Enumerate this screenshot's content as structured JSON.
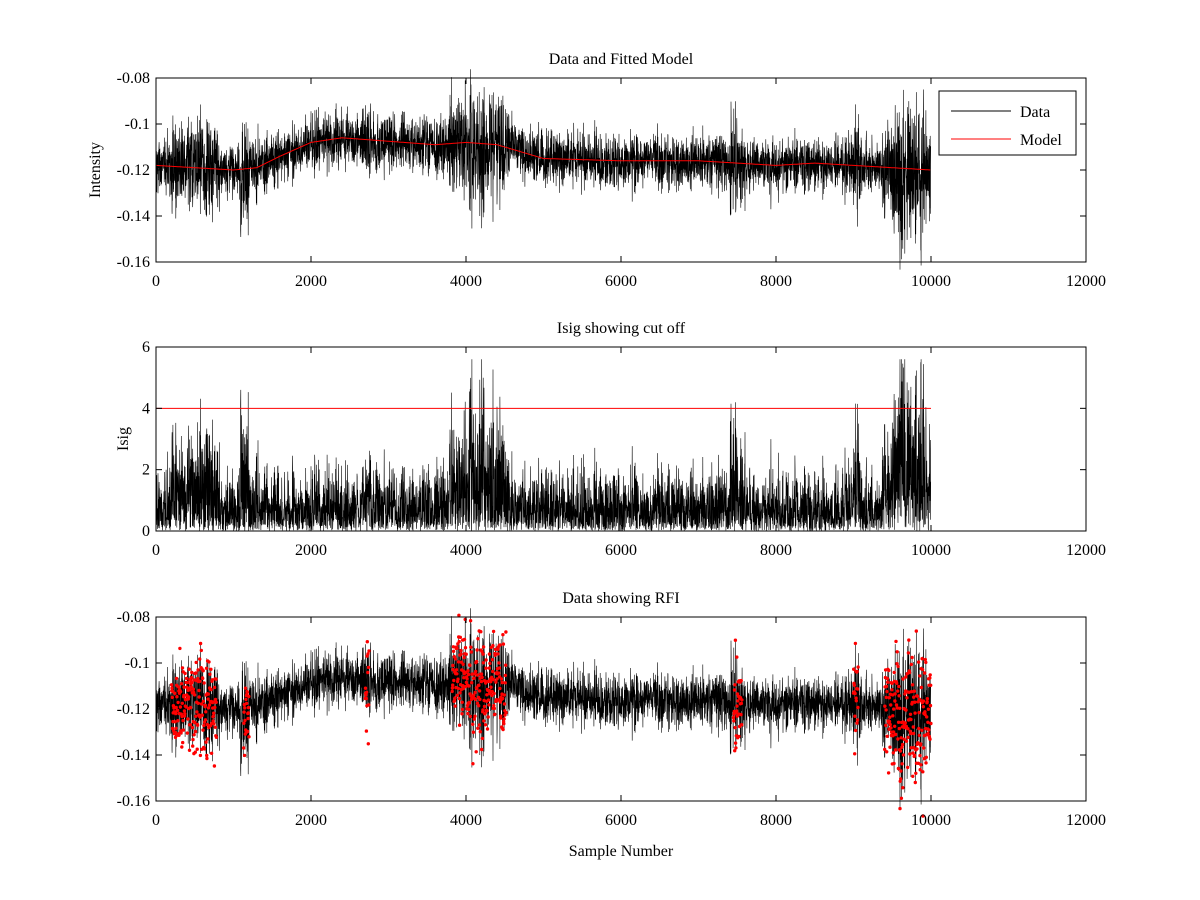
{
  "figure": {
    "x_samples": 10000,
    "colors": {
      "data": "#000000",
      "model": "#ff0000",
      "cutoff": "#ff0000",
      "rfi": "#ff0000"
    }
  },
  "chart_data": [
    {
      "type": "line",
      "title": "Data and Fitted Model",
      "xlabel": "",
      "ylabel": "Intensity",
      "xlim": [
        0,
        12000
      ],
      "ylim": [
        -0.16,
        -0.08
      ],
      "xticks": [
        0,
        2000,
        4000,
        6000,
        8000,
        10000,
        12000
      ],
      "yticks": [
        -0.16,
        -0.14,
        -0.12,
        -0.1,
        -0.08
      ],
      "xtick_labels": [
        "0",
        "2000",
        "4000",
        "6000",
        "8000",
        "10000",
        "12000"
      ],
      "ytick_labels": [
        "-0.16",
        "-0.14",
        "-0.12",
        "-0.1",
        "-0.08"
      ],
      "legend": {
        "position": "top-right",
        "entries": [
          "Data",
          "Model"
        ]
      },
      "series": [
        {
          "name": "Data",
          "color": "#000000",
          "x_range": [
            0,
            10000
          ],
          "noise_sigma": 0.008
        },
        {
          "name": "Model",
          "color": "#ff0000",
          "x": [
            0,
            500,
            1000,
            1300,
            1600,
            2000,
            2400,
            2800,
            3200,
            3600,
            4000,
            4400,
            4700,
            5000,
            6000,
            7000,
            8000,
            8500,
            9000,
            9500,
            10000
          ],
          "y": [
            -0.118,
            -0.119,
            -0.12,
            -0.119,
            -0.114,
            -0.108,
            -0.106,
            -0.107,
            -0.108,
            -0.109,
            -0.108,
            -0.109,
            -0.112,
            -0.115,
            -0.116,
            -0.116,
            -0.118,
            -0.117,
            -0.118,
            -0.119,
            -0.12
          ]
        }
      ]
    },
    {
      "type": "line",
      "title": "Isig showing cut off",
      "xlabel": "",
      "ylabel": "Isig",
      "xlim": [
        0,
        12000
      ],
      "ylim": [
        0,
        6
      ],
      "xticks": [
        0,
        2000,
        4000,
        6000,
        8000,
        10000,
        12000
      ],
      "yticks": [
        0,
        2,
        4,
        6
      ],
      "xtick_labels": [
        "0",
        "2000",
        "4000",
        "6000",
        "8000",
        "10000",
        "12000"
      ],
      "ytick_labels": [
        "0",
        "2",
        "4",
        "6"
      ],
      "cutoff": 4,
      "cutoff_x_range": [
        0,
        10000
      ],
      "series": [
        {
          "name": "Isig",
          "color": "#000000",
          "x_range": [
            0,
            10000
          ]
        },
        {
          "name": "Cut off",
          "color": "#ff0000",
          "x": [
            0,
            10000
          ],
          "y": [
            4,
            4
          ]
        }
      ]
    },
    {
      "type": "line",
      "title": "Data showing RFI",
      "xlabel": "Sample Number",
      "ylabel": "",
      "xlim": [
        0,
        12000
      ],
      "ylim": [
        -0.16,
        -0.08
      ],
      "xticks": [
        0,
        2000,
        4000,
        6000,
        8000,
        10000,
        12000
      ],
      "yticks": [
        -0.16,
        -0.14,
        -0.12,
        -0.1,
        -0.08
      ],
      "xtick_labels": [
        "0",
        "2000",
        "4000",
        "6000",
        "8000",
        "10000",
        "12000"
      ],
      "ytick_labels": [
        "-0.16",
        "-0.14",
        "-0.12",
        "-0.1",
        "-0.08"
      ],
      "rfi_regions": [
        [
          200,
          780
        ],
        [
          1130,
          1200
        ],
        [
          2700,
          2750
        ],
        [
          3820,
          4520
        ],
        [
          7450,
          7560
        ],
        [
          9000,
          9060
        ],
        [
          9400,
          10000
        ]
      ],
      "series": [
        {
          "name": "Data",
          "color": "#000000",
          "x_range": [
            0,
            10000
          ]
        },
        {
          "name": "RFI",
          "color": "#ff0000",
          "marker": "dot"
        }
      ]
    }
  ]
}
